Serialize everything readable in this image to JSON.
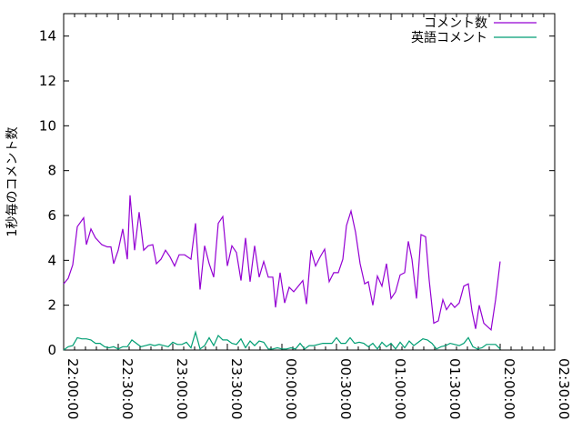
{
  "chart_data": {
    "type": "line",
    "title": "",
    "xlabel": "",
    "ylabel": "1秒毎のコメント数",
    "ylim": [
      0,
      15
    ],
    "yticks": [
      "0",
      "2",
      "4",
      "6",
      "8",
      "10",
      "12",
      "14"
    ],
    "xlim": [
      "22:00:00",
      "02:30:00"
    ],
    "xticks": [
      "22:00:00",
      "22:30:00",
      "23:00:00",
      "23:30:00",
      "00:00:00",
      "00:30:00",
      "01:00:00",
      "01:30:00",
      "02:00:00",
      "02:30:00"
    ],
    "grid": false,
    "legend_position": "top-right",
    "series": [
      {
        "name": "コメント数",
        "color": "#9400d3",
        "points": [
          [
            "22:00:00",
            2.95
          ],
          [
            "22:02:30",
            3.2
          ],
          [
            "22:05:00",
            3.8
          ],
          [
            "22:07:30",
            5.5
          ],
          [
            "22:11:00",
            5.9
          ],
          [
            "22:12:30",
            4.7
          ],
          [
            "22:15:00",
            5.4
          ],
          [
            "22:17:30",
            5.0
          ],
          [
            "22:21:00",
            4.7
          ],
          [
            "22:24:00",
            4.6
          ],
          [
            "22:26:00",
            4.6
          ],
          [
            "22:27:30",
            3.85
          ],
          [
            "22:30:00",
            4.45
          ],
          [
            "22:32:30",
            5.4
          ],
          [
            "22:35:00",
            4.05
          ],
          [
            "22:36:30",
            6.9
          ],
          [
            "22:39:00",
            4.45
          ],
          [
            "22:41:30",
            6.15
          ],
          [
            "22:44:00",
            4.45
          ],
          [
            "22:46:30",
            4.65
          ],
          [
            "22:49:00",
            4.7
          ],
          [
            "22:51:00",
            3.85
          ],
          [
            "22:53:30",
            4.05
          ],
          [
            "22:56:00",
            4.45
          ],
          [
            "22:58:30",
            4.15
          ],
          [
            "23:01:00",
            3.75
          ],
          [
            "23:03:30",
            4.25
          ],
          [
            "23:06:30",
            4.25
          ],
          [
            "23:10:00",
            4.05
          ],
          [
            "23:12:30",
            5.65
          ],
          [
            "23:15:00",
            2.7
          ],
          [
            "23:17:30",
            4.65
          ],
          [
            "23:20:00",
            3.85
          ],
          [
            "23:22:30",
            3.25
          ],
          [
            "23:25:00",
            5.65
          ],
          [
            "23:27:30",
            5.95
          ],
          [
            "23:30:00",
            3.75
          ],
          [
            "23:32:30",
            4.65
          ],
          [
            "23:35:00",
            4.35
          ],
          [
            "23:37:30",
            3.1
          ],
          [
            "23:40:00",
            5.0
          ],
          [
            "23:42:30",
            3.05
          ],
          [
            "23:45:00",
            4.65
          ],
          [
            "23:47:30",
            3.25
          ],
          [
            "23:50:00",
            3.95
          ],
          [
            "23:52:30",
            3.25
          ],
          [
            "23:55:00",
            3.25
          ],
          [
            "23:56:30",
            1.9
          ],
          [
            "23:59:00",
            3.45
          ],
          [
            "00:01:30",
            2.1
          ],
          [
            "00:04:00",
            2.8
          ],
          [
            "00:06:30",
            2.6
          ],
          [
            "00:10:00",
            2.95
          ],
          [
            "00:11:30",
            3.1
          ],
          [
            "00:13:30",
            2.05
          ],
          [
            "00:16:00",
            4.45
          ],
          [
            "00:18:30",
            3.75
          ],
          [
            "00:21:00",
            4.15
          ],
          [
            "00:23:30",
            4.5
          ],
          [
            "00:26:00",
            3.05
          ],
          [
            "00:28:30",
            3.45
          ],
          [
            "00:31:00",
            3.45
          ],
          [
            "00:33:30",
            4.05
          ],
          [
            "00:35:30",
            5.55
          ],
          [
            "00:38:00",
            6.2
          ],
          [
            "00:40:30",
            5.25
          ],
          [
            "00:43:00",
            3.85
          ],
          [
            "00:45:30",
            2.95
          ],
          [
            "00:47:30",
            3.05
          ],
          [
            "00:50:00",
            2.0
          ],
          [
            "00:52:30",
            3.3
          ],
          [
            "00:55:00",
            2.85
          ],
          [
            "00:57:30",
            3.85
          ],
          [
            "01:00:00",
            2.3
          ],
          [
            "01:02:30",
            2.6
          ],
          [
            "01:05:00",
            3.35
          ],
          [
            "01:07:30",
            3.45
          ],
          [
            "01:09:30",
            4.85
          ],
          [
            "01:11:30",
            4.05
          ],
          [
            "01:14:00",
            2.3
          ],
          [
            "01:16:30",
            5.15
          ],
          [
            "01:19:00",
            5.05
          ],
          [
            "01:21:00",
            3.1
          ],
          [
            "01:23:30",
            1.2
          ],
          [
            "01:26:00",
            1.3
          ],
          [
            "01:28:30",
            2.25
          ],
          [
            "01:30:30",
            1.8
          ],
          [
            "01:33:00",
            2.1
          ],
          [
            "01:35:00",
            1.9
          ],
          [
            "01:37:30",
            2.1
          ],
          [
            "01:40:00",
            2.85
          ],
          [
            "01:42:30",
            2.95
          ],
          [
            "01:44:30",
            1.75
          ],
          [
            "01:46:30",
            0.95
          ],
          [
            "01:48:30",
            2.0
          ],
          [
            "01:51:00",
            1.2
          ],
          [
            "01:55:00",
            0.9
          ],
          [
            "01:57:30",
            2.25
          ],
          [
            "02:00:00",
            3.95
          ]
        ]
      },
      {
        "name": "英語コメント",
        "color": "#009e73",
        "points": [
          [
            "22:00:00",
            0
          ],
          [
            "22:02:30",
            0.15
          ],
          [
            "22:05:00",
            0.2
          ],
          [
            "22:07:30",
            0.55
          ],
          [
            "22:10:00",
            0.5
          ],
          [
            "22:12:30",
            0.5
          ],
          [
            "22:15:00",
            0.45
          ],
          [
            "22:17:30",
            0.3
          ],
          [
            "22:20:00",
            0.3
          ],
          [
            "22:22:30",
            0.15
          ],
          [
            "22:25:00",
            0.1
          ],
          [
            "22:27:30",
            0.15
          ],
          [
            "22:30:00",
            0.05
          ],
          [
            "22:32:30",
            0.15
          ],
          [
            "22:35:00",
            0.15
          ],
          [
            "22:37:30",
            0.45
          ],
          [
            "22:40:00",
            0.3
          ],
          [
            "22:42:30",
            0.15
          ],
          [
            "22:45:00",
            0.2
          ],
          [
            "22:47:30",
            0.25
          ],
          [
            "22:50:00",
            0.2
          ],
          [
            "22:52:30",
            0.25
          ],
          [
            "22:55:00",
            0.2
          ],
          [
            "22:57:30",
            0.15
          ],
          [
            "23:00:00",
            0.35
          ],
          [
            "23:02:30",
            0.25
          ],
          [
            "23:05:00",
            0.25
          ],
          [
            "23:07:30",
            0.35
          ],
          [
            "23:10:00",
            0.1
          ],
          [
            "23:12:30",
            0.8
          ],
          [
            "23:15:00",
            0.05
          ],
          [
            "23:17:30",
            0.2
          ],
          [
            "23:20:00",
            0.55
          ],
          [
            "23:22:30",
            0.2
          ],
          [
            "23:25:00",
            0.65
          ],
          [
            "23:27:30",
            0.45
          ],
          [
            "23:30:00",
            0.45
          ],
          [
            "23:32:30",
            0.3
          ],
          [
            "23:35:00",
            0.25
          ],
          [
            "23:37:30",
            0.5
          ],
          [
            "23:40:00",
            0.1
          ],
          [
            "23:42:30",
            0.4
          ],
          [
            "23:45:00",
            0.2
          ],
          [
            "23:47:30",
            0.4
          ],
          [
            "23:50:00",
            0.35
          ],
          [
            "23:52:30",
            0.05
          ],
          [
            "23:55:00",
            0.05
          ],
          [
            "23:57:30",
            0.1
          ],
          [
            "00:00:00",
            0.05
          ],
          [
            "00:02:30",
            0.05
          ],
          [
            "00:05:00",
            0.1
          ],
          [
            "00:07:30",
            0.05
          ],
          [
            "00:10:00",
            0.3
          ],
          [
            "00:12:30",
            0.05
          ],
          [
            "00:15:00",
            0.2
          ],
          [
            "00:17:30",
            0.2
          ],
          [
            "00:20:00",
            0.25
          ],
          [
            "00:22:30",
            0.3
          ],
          [
            "00:25:00",
            0.3
          ],
          [
            "00:27:30",
            0.3
          ],
          [
            "00:30:00",
            0.55
          ],
          [
            "00:32:30",
            0.3
          ],
          [
            "00:35:00",
            0.3
          ],
          [
            "00:37:30",
            0.55
          ],
          [
            "00:40:00",
            0.3
          ],
          [
            "00:42:30",
            0.35
          ],
          [
            "00:45:00",
            0.3
          ],
          [
            "00:47:30",
            0.15
          ],
          [
            "00:50:00",
            0.3
          ],
          [
            "00:52:30",
            0.05
          ],
          [
            "00:55:00",
            0.35
          ],
          [
            "00:57:30",
            0.15
          ],
          [
            "01:00:00",
            0.3
          ],
          [
            "01:02:30",
            0.05
          ],
          [
            "01:05:00",
            0.35
          ],
          [
            "01:07:30",
            0.1
          ],
          [
            "01:10:00",
            0.4
          ],
          [
            "01:12:30",
            0.2
          ],
          [
            "01:15:00",
            0.35
          ],
          [
            "01:17:30",
            0.5
          ],
          [
            "01:20:00",
            0.45
          ],
          [
            "01:22:30",
            0.3
          ],
          [
            "01:25:00",
            0.05
          ],
          [
            "01:27:30",
            0.15
          ],
          [
            "01:30:00",
            0.2
          ],
          [
            "01:32:30",
            0.3
          ],
          [
            "01:35:00",
            0.25
          ],
          [
            "01:37:30",
            0.2
          ],
          [
            "01:40:00",
            0.3
          ],
          [
            "01:42:30",
            0.55
          ],
          [
            "01:45:00",
            0.15
          ],
          [
            "01:47:30",
            0.05
          ],
          [
            "01:50:00",
            0.1
          ],
          [
            "01:52:30",
            0.25
          ],
          [
            "01:55:00",
            0.25
          ],
          [
            "01:57:30",
            0.25
          ],
          [
            "02:00:00",
            0.05
          ]
        ]
      }
    ]
  }
}
